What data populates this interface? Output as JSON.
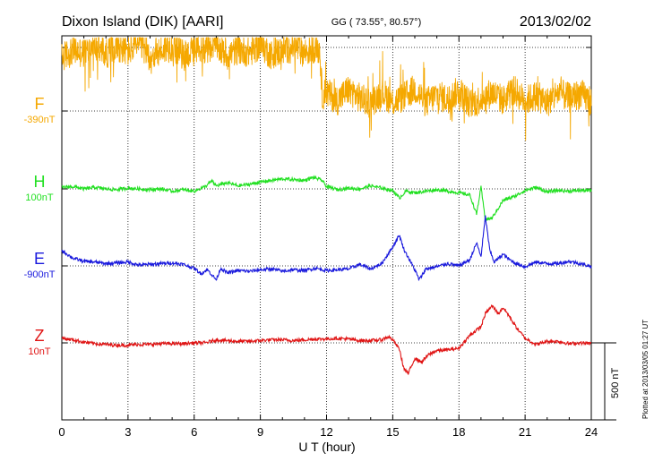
{
  "chart_data": {
    "type": "line",
    "title": "Dixon Island (DIK)  [AARI]",
    "coords": "GG ( 73.55°,  80.57°)",
    "date": "2013/02/02",
    "xlabel": "U T (hour)",
    "xlim": [
      0,
      24
    ],
    "xticks": [
      "0",
      "3",
      "6",
      "9",
      "12",
      "15",
      "18",
      "21",
      "24"
    ],
    "scale_label": "500 nT",
    "plotted_note": "Plotted at 2013/03/05 01:27 UT",
    "series": [
      {
        "name": "F",
        "offset": "-390nT",
        "color": "#f5a800",
        "noise": "high",
        "points": [
          [
            0,
            69
          ],
          [
            0.5,
            79
          ],
          [
            1,
            75
          ],
          [
            1.5,
            84
          ],
          [
            2,
            74
          ],
          [
            2.5,
            85
          ],
          [
            3,
            77
          ],
          [
            3.5,
            88
          ],
          [
            4,
            71
          ],
          [
            4.5,
            79
          ],
          [
            5,
            84
          ],
          [
            5.5,
            73
          ],
          [
            6,
            77
          ],
          [
            6.5,
            82
          ],
          [
            7,
            85
          ],
          [
            7.5,
            72
          ],
          [
            8,
            80
          ],
          [
            8.5,
            76
          ],
          [
            9,
            86
          ],
          [
            9.5,
            73
          ],
          [
            10,
            79
          ],
          [
            10.5,
            84
          ],
          [
            11,
            76
          ],
          [
            11.5,
            83
          ],
          [
            11.7,
            78
          ],
          [
            11.8,
            20
          ],
          [
            12,
            24
          ],
          [
            12.5,
            14
          ],
          [
            13,
            28
          ],
          [
            13.5,
            17
          ],
          [
            14,
            10
          ],
          [
            14.5,
            25
          ],
          [
            15,
            12
          ],
          [
            15.5,
            18
          ],
          [
            16,
            29
          ],
          [
            16.5,
            11
          ],
          [
            17,
            21
          ],
          [
            17.5,
            15
          ],
          [
            18,
            27
          ],
          [
            18.5,
            9
          ],
          [
            19,
            16
          ],
          [
            19.5,
            24
          ],
          [
            20,
            14
          ],
          [
            20.5,
            27
          ],
          [
            21,
            13
          ],
          [
            21.5,
            20
          ],
          [
            22,
            11
          ],
          [
            22.5,
            24
          ],
          [
            23,
            17
          ],
          [
            23.5,
            22
          ],
          [
            24,
            13
          ]
        ]
      },
      {
        "name": "H",
        "offset": "100nT",
        "color": "#22e022",
        "noise": "low",
        "points": [
          [
            0,
            2
          ],
          [
            0.5,
            3
          ],
          [
            1,
            0
          ],
          [
            1.5,
            2
          ],
          [
            2,
            0
          ],
          [
            2.5,
            -1
          ],
          [
            3,
            1
          ],
          [
            3.5,
            0
          ],
          [
            4,
            -1
          ],
          [
            4.5,
            0
          ],
          [
            5,
            -3
          ],
          [
            5.5,
            -1
          ],
          [
            6,
            -3
          ],
          [
            6.5,
            3
          ],
          [
            6.8,
            10
          ],
          [
            7,
            4
          ],
          [
            7.5,
            8
          ],
          [
            8,
            4
          ],
          [
            8.5,
            6
          ],
          [
            9,
            9
          ],
          [
            9.5,
            11
          ],
          [
            10,
            13
          ],
          [
            10.5,
            12
          ],
          [
            11,
            11
          ],
          [
            11.4,
            15
          ],
          [
            11.8,
            11
          ],
          [
            12,
            3
          ],
          [
            12.5,
            -1
          ],
          [
            13,
            1
          ],
          [
            13.5,
            0
          ],
          [
            14,
            4
          ],
          [
            14.5,
            1
          ],
          [
            15,
            -2
          ],
          [
            15.3,
            -12
          ],
          [
            15.6,
            -3
          ],
          [
            16,
            -5
          ],
          [
            16.5,
            -3
          ],
          [
            17,
            -1
          ],
          [
            17.5,
            -3
          ],
          [
            18,
            -5
          ],
          [
            18.5,
            -8
          ],
          [
            18.8,
            -33
          ],
          [
            19,
            2
          ],
          [
            19.2,
            -40
          ],
          [
            19.5,
            -38
          ],
          [
            20,
            -15
          ],
          [
            20.5,
            -10
          ],
          [
            21,
            -2
          ],
          [
            21.5,
            2
          ],
          [
            22,
            -4
          ],
          [
            22.5,
            -2
          ],
          [
            23,
            -3
          ],
          [
            23.5,
            -2
          ],
          [
            24,
            -2
          ]
        ]
      },
      {
        "name": "E",
        "offset": "-900nT",
        "color": "#1a1add",
        "noise": "low",
        "points": [
          [
            0,
            20
          ],
          [
            0.5,
            10
          ],
          [
            1,
            6
          ],
          [
            1.5,
            5
          ],
          [
            2,
            3
          ],
          [
            2.5,
            4
          ],
          [
            3,
            5
          ],
          [
            3.5,
            1
          ],
          [
            4,
            2
          ],
          [
            4.5,
            3
          ],
          [
            5,
            4
          ],
          [
            5.5,
            2
          ],
          [
            6,
            -3
          ],
          [
            6.3,
            -10
          ],
          [
            6.6,
            -5
          ],
          [
            7,
            -18
          ],
          [
            7.2,
            -3
          ],
          [
            7.5,
            -9
          ],
          [
            8,
            -6
          ],
          [
            8.5,
            -7
          ],
          [
            9,
            -5
          ],
          [
            9.5,
            -4
          ],
          [
            10,
            -7
          ],
          [
            10.5,
            -5
          ],
          [
            11,
            -6
          ],
          [
            11.5,
            -3
          ],
          [
            12,
            -6
          ],
          [
            12.5,
            -5
          ],
          [
            13,
            -4
          ],
          [
            13.5,
            2
          ],
          [
            14,
            -4
          ],
          [
            14.5,
            3
          ],
          [
            15,
            25
          ],
          [
            15.3,
            40
          ],
          [
            15.5,
            22
          ],
          [
            16,
            -5
          ],
          [
            16.2,
            -18
          ],
          [
            16.5,
            -4
          ],
          [
            17,
            -1
          ],
          [
            17.5,
            3
          ],
          [
            18,
            0
          ],
          [
            18.5,
            8
          ],
          [
            18.8,
            30
          ],
          [
            19,
            12
          ],
          [
            19.2,
            64
          ],
          [
            19.4,
            20
          ],
          [
            19.6,
            5
          ],
          [
            20,
            15
          ],
          [
            20.3,
            8
          ],
          [
            20.6,
            3
          ],
          [
            21,
            -1
          ],
          [
            21.5,
            5
          ],
          [
            22,
            3
          ],
          [
            22.5,
            3
          ],
          [
            23,
            6
          ],
          [
            23.5,
            3
          ],
          [
            24,
            -1
          ]
        ]
      },
      {
        "name": "Z",
        "offset": "10nT",
        "color": "#e01515",
        "noise": "low",
        "points": [
          [
            0,
            6
          ],
          [
            0.5,
            4
          ],
          [
            1,
            1
          ],
          [
            1.5,
            -1
          ],
          [
            2,
            -2
          ],
          [
            2.5,
            -3
          ],
          [
            3,
            -3
          ],
          [
            3.5,
            -2
          ],
          [
            4,
            -2
          ],
          [
            4.5,
            -1
          ],
          [
            5,
            -1
          ],
          [
            5.5,
            -1
          ],
          [
            6,
            0
          ],
          [
            6.5,
            0
          ],
          [
            7,
            4
          ],
          [
            7.5,
            3
          ],
          [
            8,
            2
          ],
          [
            8.5,
            2
          ],
          [
            9,
            3
          ],
          [
            9.5,
            4
          ],
          [
            10,
            4
          ],
          [
            10.5,
            3
          ],
          [
            11,
            4
          ],
          [
            11.5,
            5
          ],
          [
            12,
            5
          ],
          [
            12.5,
            6
          ],
          [
            13,
            5
          ],
          [
            13.5,
            3
          ],
          [
            14,
            3
          ],
          [
            14.5,
            4
          ],
          [
            14.8,
            8
          ],
          [
            15,
            4
          ],
          [
            15.3,
            -8
          ],
          [
            15.5,
            -33
          ],
          [
            15.7,
            -40
          ],
          [
            16,
            -20
          ],
          [
            16.3,
            -25
          ],
          [
            16.6,
            -16
          ],
          [
            17,
            -10
          ],
          [
            17.5,
            -9
          ],
          [
            18,
            -7
          ],
          [
            18.5,
            10
          ],
          [
            19,
            21
          ],
          [
            19.2,
            38
          ],
          [
            19.5,
            48
          ],
          [
            19.8,
            38
          ],
          [
            20,
            46
          ],
          [
            20.3,
            34
          ],
          [
            20.6,
            20
          ],
          [
            21,
            6
          ],
          [
            21.5,
            -2
          ],
          [
            22,
            2
          ],
          [
            22.5,
            2
          ],
          [
            23,
            -1
          ],
          [
            23.5,
            0
          ],
          [
            24,
            -1
          ]
        ]
      }
    ]
  }
}
